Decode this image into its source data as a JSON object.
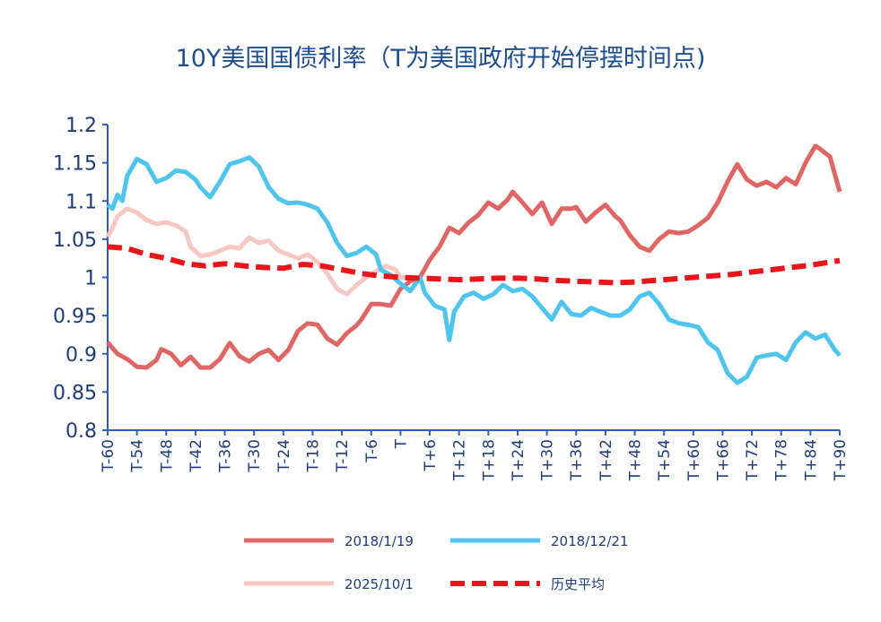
{
  "chart_data": {
    "type": "line",
    "title": "10Y美国国债利率（T为美国政府开始停摆时间点)",
    "xlabel": "",
    "ylabel": "",
    "ylim": [
      0.8,
      1.2
    ],
    "yticks": [
      "0.8",
      "0.85",
      "0.9",
      "0.95",
      "1",
      "1.05",
      "1.1",
      "1.15",
      "1.2"
    ],
    "x_tick_labels": [
      "T-60",
      "T-54",
      "T-48",
      "T-42",
      "T-36",
      "T-30",
      "T-24",
      "T-18",
      "T-12",
      "T-6",
      "T",
      "T+6",
      "T+12",
      "T+18",
      "T+24",
      "T+30",
      "T+36",
      "T+42",
      "T+48",
      "T+54",
      "T+60",
      "T+66",
      "T+72",
      "T+78",
      "T+84",
      "T+90"
    ],
    "x_range": [
      -60,
      90
    ],
    "legend_position": "bottom",
    "series": [
      {
        "name": "2018/1/19",
        "color": "#e06666",
        "style": "solid",
        "points": [
          [
            -60,
            0.915
          ],
          [
            -58,
            0.9
          ],
          [
            -56,
            0.893
          ],
          [
            -54,
            0.883
          ],
          [
            -52,
            0.882
          ],
          [
            -50,
            0.892
          ],
          [
            -49,
            0.906
          ],
          [
            -47,
            0.9
          ],
          [
            -45,
            0.885
          ],
          [
            -43,
            0.896
          ],
          [
            -41,
            0.882
          ],
          [
            -39,
            0.882
          ],
          [
            -37,
            0.893
          ],
          [
            -35,
            0.914
          ],
          [
            -33,
            0.897
          ],
          [
            -31,
            0.89
          ],
          [
            -29,
            0.9
          ],
          [
            -27,
            0.905
          ],
          [
            -25,
            0.892
          ],
          [
            -23,
            0.905
          ],
          [
            -21,
            0.93
          ],
          [
            -19,
            0.94
          ],
          [
            -17,
            0.938
          ],
          [
            -15,
            0.92
          ],
          [
            -13,
            0.912
          ],
          [
            -11,
            0.927
          ],
          [
            -9,
            0.937
          ],
          [
            -8,
            0.945
          ],
          [
            -6,
            0.965
          ],
          [
            -4,
            0.965
          ],
          [
            -2,
            0.963
          ],
          [
            0,
            0.985
          ],
          [
            2,
            0.995
          ],
          [
            4,
            1.0
          ],
          [
            6,
            1.023
          ],
          [
            8,
            1.04
          ],
          [
            10,
            1.065
          ],
          [
            12,
            1.058
          ],
          [
            14,
            1.072
          ],
          [
            16,
            1.082
          ],
          [
            18,
            1.098
          ],
          [
            20,
            1.09
          ],
          [
            22,
            1.102
          ],
          [
            23,
            1.112
          ],
          [
            25,
            1.098
          ],
          [
            27,
            1.083
          ],
          [
            29,
            1.098
          ],
          [
            31,
            1.07
          ],
          [
            33,
            1.09
          ],
          [
            35,
            1.09
          ],
          [
            36,
            1.092
          ],
          [
            38,
            1.073
          ],
          [
            40,
            1.085
          ],
          [
            42,
            1.095
          ],
          [
            44,
            1.08
          ],
          [
            45,
            1.075
          ],
          [
            47,
            1.055
          ],
          [
            49,
            1.04
          ],
          [
            51,
            1.035
          ],
          [
            53,
            1.05
          ],
          [
            55,
            1.06
          ],
          [
            57,
            1.058
          ],
          [
            59,
            1.06
          ],
          [
            61,
            1.068
          ],
          [
            63,
            1.078
          ],
          [
            65,
            1.098
          ],
          [
            67,
            1.125
          ],
          [
            69,
            1.148
          ],
          [
            71,
            1.128
          ],
          [
            73,
            1.12
          ],
          [
            75,
            1.125
          ],
          [
            77,
            1.118
          ],
          [
            79,
            1.13
          ],
          [
            81,
            1.122
          ],
          [
            83,
            1.15
          ],
          [
            85,
            1.172
          ],
          [
            86,
            1.168
          ],
          [
            88,
            1.158
          ],
          [
            90,
            1.112
          ]
        ]
      },
      {
        "name": "2018/12/21",
        "color": "#4fc4ec",
        "style": "solid",
        "points": [
          [
            -60,
            1.095
          ],
          [
            -59,
            1.09
          ],
          [
            -58,
            1.108
          ],
          [
            -57,
            1.1
          ],
          [
            -56,
            1.133
          ],
          [
            -54,
            1.155
          ],
          [
            -52,
            1.148
          ],
          [
            -50,
            1.125
          ],
          [
            -48,
            1.13
          ],
          [
            -46,
            1.14
          ],
          [
            -44,
            1.138
          ],
          [
            -42,
            1.128
          ],
          [
            -41,
            1.118
          ],
          [
            -39,
            1.105
          ],
          [
            -37,
            1.125
          ],
          [
            -35,
            1.148
          ],
          [
            -33,
            1.152
          ],
          [
            -31,
            1.157
          ],
          [
            -29,
            1.145
          ],
          [
            -27,
            1.118
          ],
          [
            -25,
            1.103
          ],
          [
            -23,
            1.097
          ],
          [
            -21,
            1.098
          ],
          [
            -19,
            1.095
          ],
          [
            -17,
            1.09
          ],
          [
            -15,
            1.072
          ],
          [
            -13,
            1.045
          ],
          [
            -11,
            1.028
          ],
          [
            -9,
            1.032
          ],
          [
            -7,
            1.04
          ],
          [
            -5,
            1.03
          ],
          [
            -4,
            1.01
          ],
          [
            -2,
            1.003
          ],
          [
            0,
            0.992
          ],
          [
            2,
            0.982
          ],
          [
            4,
            1.0
          ],
          [
            5,
            0.98
          ],
          [
            7,
            0.963
          ],
          [
            9,
            0.958
          ],
          [
            10,
            0.918
          ],
          [
            11,
            0.955
          ],
          [
            13,
            0.975
          ],
          [
            15,
            0.98
          ],
          [
            17,
            0.972
          ],
          [
            19,
            0.978
          ],
          [
            21,
            0.99
          ],
          [
            23,
            0.982
          ],
          [
            25,
            0.985
          ],
          [
            27,
            0.975
          ],
          [
            29,
            0.96
          ],
          [
            31,
            0.945
          ],
          [
            33,
            0.968
          ],
          [
            35,
            0.952
          ],
          [
            37,
            0.95
          ],
          [
            39,
            0.96
          ],
          [
            41,
            0.955
          ],
          [
            43,
            0.95
          ],
          [
            45,
            0.95
          ],
          [
            47,
            0.958
          ],
          [
            49,
            0.975
          ],
          [
            51,
            0.98
          ],
          [
            53,
            0.965
          ],
          [
            55,
            0.945
          ],
          [
            57,
            0.94
          ],
          [
            59,
            0.938
          ],
          [
            61,
            0.935
          ],
          [
            63,
            0.915
          ],
          [
            65,
            0.905
          ],
          [
            67,
            0.875
          ],
          [
            69,
            0.862
          ],
          [
            71,
            0.87
          ],
          [
            73,
            0.895
          ],
          [
            75,
            0.898
          ],
          [
            77,
            0.9
          ],
          [
            79,
            0.892
          ],
          [
            81,
            0.915
          ],
          [
            83,
            0.928
          ],
          [
            85,
            0.92
          ],
          [
            87,
            0.925
          ],
          [
            89,
            0.905
          ],
          [
            90,
            0.898
          ]
        ]
      },
      {
        "name": "2025/10/1",
        "color": "#f6c7c3",
        "style": "solid",
        "points": [
          [
            -60,
            1.053
          ],
          [
            -59,
            1.065
          ],
          [
            -58,
            1.08
          ],
          [
            -56,
            1.09
          ],
          [
            -54,
            1.085
          ],
          [
            -52,
            1.075
          ],
          [
            -50,
            1.07
          ],
          [
            -48,
            1.072
          ],
          [
            -46,
            1.068
          ],
          [
            -44,
            1.06
          ],
          [
            -43,
            1.04
          ],
          [
            -41,
            1.028
          ],
          [
            -39,
            1.03
          ],
          [
            -37,
            1.035
          ],
          [
            -35,
            1.04
          ],
          [
            -33,
            1.038
          ],
          [
            -31,
            1.052
          ],
          [
            -29,
            1.045
          ],
          [
            -27,
            1.048
          ],
          [
            -25,
            1.035
          ],
          [
            -23,
            1.03
          ],
          [
            -21,
            1.025
          ],
          [
            -19,
            1.03
          ],
          [
            -17,
            1.02
          ],
          [
            -15,
            1.005
          ],
          [
            -13,
            0.985
          ],
          [
            -11,
            0.978
          ],
          [
            -9,
            0.99
          ],
          [
            -7,
            1.0
          ],
          [
            -5,
            1.008
          ],
          [
            -3,
            1.015
          ],
          [
            -1,
            1.01
          ],
          [
            0,
            1.0
          ],
          [
            2,
            0.998
          ],
          [
            4,
            0.996
          ]
        ]
      },
      {
        "name": "历史平均",
        "color": "#e8161b",
        "style": "dashed",
        "points": [
          [
            -60,
            1.04
          ],
          [
            -56,
            1.038
          ],
          [
            -52,
            1.03
          ],
          [
            -48,
            1.025
          ],
          [
            -44,
            1.018
          ],
          [
            -40,
            1.015
          ],
          [
            -36,
            1.018
          ],
          [
            -32,
            1.015
          ],
          [
            -28,
            1.013
          ],
          [
            -24,
            1.012
          ],
          [
            -20,
            1.017
          ],
          [
            -16,
            1.015
          ],
          [
            -12,
            1.01
          ],
          [
            -8,
            1.005
          ],
          [
            -4,
            1.002
          ],
          [
            0,
            1.0
          ],
          [
            4,
            0.999
          ],
          [
            8,
            0.998
          ],
          [
            12,
            0.997
          ],
          [
            16,
            0.998
          ],
          [
            20,
            0.999
          ],
          [
            24,
            0.999
          ],
          [
            28,
            0.998
          ],
          [
            32,
            0.996
          ],
          [
            36,
            0.995
          ],
          [
            40,
            0.994
          ],
          [
            44,
            0.993
          ],
          [
            48,
            0.994
          ],
          [
            52,
            0.996
          ],
          [
            56,
            0.998
          ],
          [
            60,
            1.0
          ],
          [
            64,
            1.002
          ],
          [
            68,
            1.004
          ],
          [
            72,
            1.007
          ],
          [
            76,
            1.01
          ],
          [
            80,
            1.013
          ],
          [
            84,
            1.016
          ],
          [
            88,
            1.02
          ],
          [
            90,
            1.022
          ]
        ]
      }
    ]
  }
}
